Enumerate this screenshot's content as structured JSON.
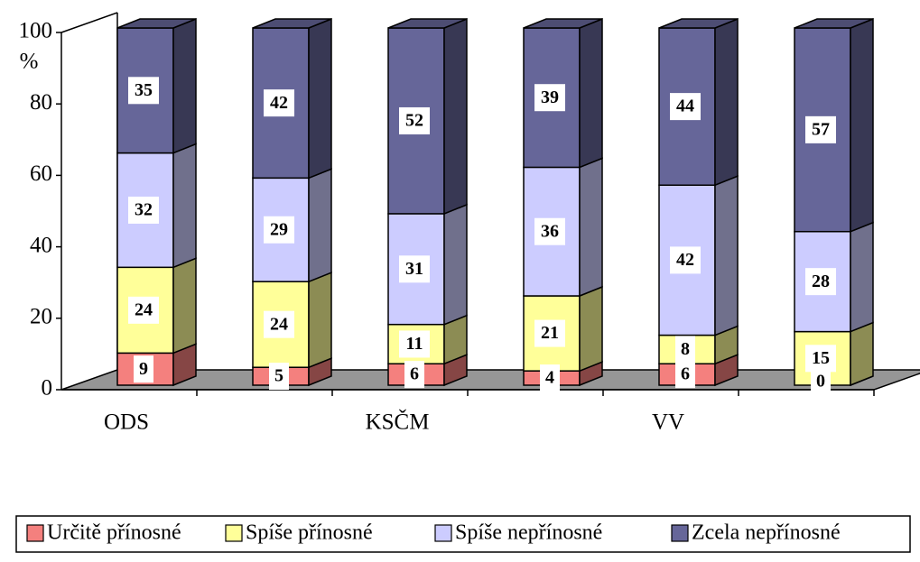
{
  "chart_data": {
    "type": "bar",
    "stacked": true,
    "three_d": true,
    "y_label": "%",
    "categories": [
      "ODS",
      null,
      "KSČM",
      null,
      "VV",
      null
    ],
    "series": [
      {
        "name": "Určitě přínosné",
        "color": "#f4807e",
        "values": [
          9,
          5,
          6,
          4,
          6,
          0
        ]
      },
      {
        "name": "Spíše přínosné",
        "color": "#ffff99",
        "values": [
          24,
          24,
          11,
          21,
          8,
          15
        ]
      },
      {
        "name": "Spíše nepřínosné",
        "color": "#ccccff",
        "values": [
          32,
          29,
          31,
          36,
          42,
          28
        ]
      },
      {
        "name": "Zcela nepřínosné",
        "color": "#666699",
        "values": [
          35,
          42,
          52,
          39,
          44,
          57
        ]
      }
    ],
    "ylim": [
      0,
      100
    ],
    "yticks": [
      0,
      20,
      40,
      60,
      80,
      100
    ],
    "legend": "bottom"
  }
}
